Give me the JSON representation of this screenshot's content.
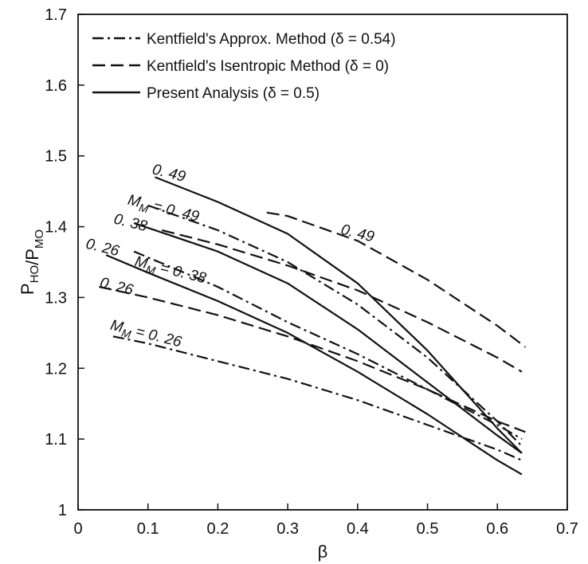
{
  "chart_data": {
    "type": "line",
    "xlabel": "β",
    "ylabel": "P_HO/P_MO",
    "xlim": [
      0,
      0.7
    ],
    "ylim": [
      1.0,
      1.7
    ],
    "x_ticks": [
      "0",
      "0.1",
      "0.2",
      "0.3",
      "0.4",
      "0.5",
      "0.6",
      "0.7"
    ],
    "y_ticks": [
      "1",
      "1.1",
      "1.2",
      "1.3",
      "1.4",
      "1.5",
      "1.6",
      "1.7"
    ],
    "grid": false,
    "legend_position": "top-left",
    "legend": [
      {
        "label": "Kentfield's Approx. Method (δ = 0.54)",
        "style": "dashdot"
      },
      {
        "label": "Kentfield's Isentropic Method (δ = 0)",
        "style": "dashed"
      },
      {
        "label": "Present Analysis (δ = 0.5)",
        "style": "solid"
      }
    ],
    "series": [
      {
        "method": "Present Analysis (δ = 0.5)",
        "style": "solid",
        "mach": "0.49",
        "x": [
          0.11,
          0.2,
          0.3,
          0.4,
          0.5,
          0.6,
          0.635
        ],
        "y": [
          1.47,
          1.435,
          1.39,
          1.32,
          1.225,
          1.115,
          1.08
        ]
      },
      {
        "method": "Present Analysis (δ = 0.5)",
        "style": "solid",
        "mach": "0.38",
        "x": [
          0.08,
          0.2,
          0.3,
          0.4,
          0.5,
          0.6,
          0.635
        ],
        "y": [
          1.405,
          1.365,
          1.32,
          1.255,
          1.18,
          1.105,
          1.08
        ]
      },
      {
        "method": "Present Analysis (δ = 0.5)",
        "style": "solid",
        "mach": "0.26",
        "x": [
          0.04,
          0.1,
          0.2,
          0.3,
          0.4,
          0.5,
          0.6,
          0.635
        ],
        "y": [
          1.36,
          1.335,
          1.295,
          1.25,
          1.195,
          1.135,
          1.07,
          1.05
        ]
      },
      {
        "method": "Kentfield's Approx. Method (δ = 0.54)",
        "style": "dashdot",
        "mach": "0.49",
        "x": [
          0.1,
          0.2,
          0.3,
          0.4,
          0.5,
          0.6,
          0.635
        ],
        "y": [
          1.43,
          1.395,
          1.35,
          1.29,
          1.215,
          1.125,
          1.09
        ]
      },
      {
        "method": "Kentfield's Approx. Method (δ = 0.54)",
        "style": "dashdot",
        "mach": "0.38",
        "x": [
          0.08,
          0.2,
          0.3,
          0.4,
          0.5,
          0.6,
          0.635
        ],
        "y": [
          1.365,
          1.315,
          1.265,
          1.22,
          1.17,
          1.12,
          1.1
        ]
      },
      {
        "method": "Kentfield's Approx. Method (δ = 0.54)",
        "style": "dashdot",
        "mach": "0.26",
        "x": [
          0.05,
          0.1,
          0.2,
          0.3,
          0.4,
          0.5,
          0.6,
          0.635
        ],
        "y": [
          1.245,
          1.235,
          1.21,
          1.185,
          1.155,
          1.12,
          1.085,
          1.07
        ]
      },
      {
        "method": "Kentfield's Isentropic Method (δ = 0)",
        "style": "dashed",
        "mach": "0.49",
        "x": [
          0.27,
          0.3,
          0.4,
          0.5,
          0.6,
          0.64
        ],
        "y": [
          1.42,
          1.415,
          1.38,
          1.325,
          1.26,
          1.23
        ]
      },
      {
        "method": "Kentfield's Isentropic Method (δ = 0)",
        "style": "dashed",
        "mach": "0.38",
        "x": [
          0.12,
          0.2,
          0.3,
          0.4,
          0.5,
          0.6,
          0.635
        ],
        "y": [
          1.395,
          1.375,
          1.345,
          1.31,
          1.265,
          1.215,
          1.195
        ]
      },
      {
        "method": "Kentfield's Isentropic Method (δ = 0)",
        "style": "dashed",
        "mach": "0.26",
        "x": [
          0.03,
          0.1,
          0.2,
          0.3,
          0.4,
          0.5,
          0.6,
          0.64
        ],
        "y": [
          1.315,
          1.3,
          1.275,
          1.245,
          1.21,
          1.17,
          1.125,
          1.11
        ]
      }
    ],
    "annotations": [
      {
        "text": "0. 49",
        "x": 0.105,
        "y": 1.475
      },
      {
        "text": "M",
        "sub": "M",
        "rest": " = 0. 49",
        "x": 0.07,
        "y": 1.432
      },
      {
        "text": "0. 49",
        "x": 0.375,
        "y": 1.39
      },
      {
        "text": "0. 38",
        "x": 0.05,
        "y": 1.405
      },
      {
        "text": "M",
        "sub": "M",
        "rest": " = 0. 38",
        "x": 0.08,
        "y": 1.345
      },
      {
        "text": "0. 26",
        "x": 0.01,
        "y": 1.37
      },
      {
        "text": "0. 26",
        "x": 0.03,
        "y": 1.315
      },
      {
        "text": "M",
        "sub": "M",
        "rest": " = 0. 26",
        "x": 0.045,
        "y": 1.255
      }
    ]
  }
}
